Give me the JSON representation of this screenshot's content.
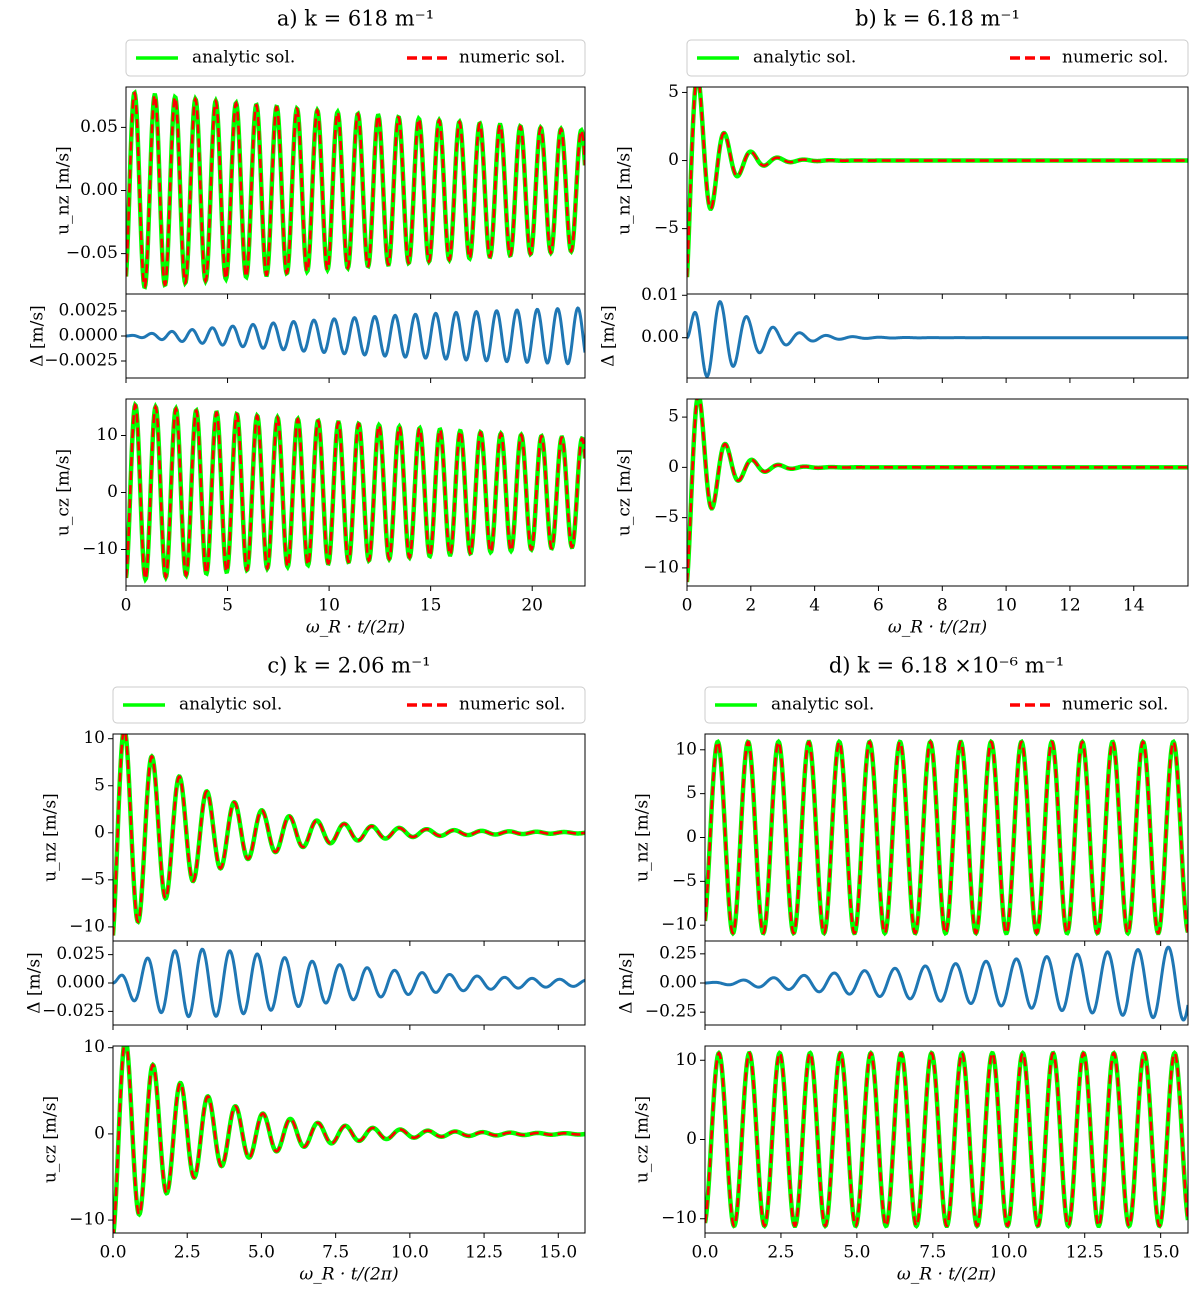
{
  "figure": {
    "analytic_color": "#00ff00",
    "numeric_color": "#ff0000",
    "diff_color": "#1f77b4",
    "legend": {
      "analytic": "analytic sol.",
      "numeric": "numeric sol."
    },
    "xlabel": "ω_R · t/(2π)",
    "ylabel_top": "u_nz [m/s]",
    "ylabel_diff": "Δ [m/s]",
    "ylabel_bottom": "u_cz [m/s]"
  },
  "chart_data": [
    {
      "type": "line",
      "panel": "a",
      "title": "a)  k =  618  m⁻¹",
      "xlim": [
        0,
        22.6
      ],
      "xticks": [
        "0",
        "5",
        "10",
        "15",
        "20"
      ],
      "xtick_values": [
        0,
        5,
        10,
        15,
        20
      ],
      "params": {
        "omega_cycles_per_unit": 1,
        "decay": 0.022,
        "phase": 3.4
      },
      "u_nz": {
        "ylim": [
          -0.082,
          0.082
        ],
        "amplitude": 0.078,
        "ticks": [
          "0.05",
          "0.00",
          "−0.05"
        ],
        "tick_values": [
          0.05,
          0.0,
          -0.05
        ]
      },
      "delta": {
        "ylim": [
          -0.0042,
          0.0042
        ],
        "amplitude_growth": 0.0038,
        "ticks": [
          "0.0025",
          "0.0000",
          "−0.0025"
        ],
        "tick_values": [
          0.0025,
          0.0,
          -0.0025
        ]
      },
      "u_cz": {
        "ylim": [
          -16.4,
          16.4
        ],
        "amplitude": 15.5,
        "ticks": [
          "10",
          "0",
          "−10"
        ],
        "tick_values": [
          10,
          0,
          -10
        ]
      }
    },
    {
      "type": "line",
      "panel": "b",
      "title": "b)  k =  6.18 m⁻¹",
      "xlim": [
        0,
        15.7
      ],
      "xticks": [
        "0",
        "2",
        "4",
        "6",
        "8",
        "10",
        "12",
        "14"
      ],
      "xtick_values": [
        0,
        2,
        4,
        6,
        8,
        10,
        12,
        14
      ],
      "params": {
        "omega_cycles_per_unit": 1.2,
        "decay": 1.35,
        "phase": 3.4
      },
      "u_nz": {
        "ylim": [
          -9.8,
          5.4
        ],
        "amplitude": 9.8,
        "ticks": [
          "5",
          "0",
          "−5"
        ],
        "tick_values": [
          5,
          0,
          -5
        ]
      },
      "delta": {
        "ylim": [
          -0.0095,
          0.0103
        ],
        "amplitude_growth": 0.0105,
        "ticks": [
          "0.01",
          "0.00"
        ],
        "tick_values": [
          0.01,
          0.0
        ]
      },
      "u_cz": {
        "ylim": [
          -11.8,
          6.8
        ],
        "amplitude": 11.8,
        "ticks": [
          "5",
          "0",
          "−5",
          "−10"
        ],
        "tick_values": [
          5,
          0,
          -5,
          -10
        ]
      }
    },
    {
      "type": "line",
      "panel": "c",
      "title": "c)  k =  2.06 m⁻¹",
      "xlim": [
        0,
        15.9
      ],
      "xticks": [
        "0.0",
        "2.5",
        "5.0",
        "7.5",
        "10.0",
        "12.5",
        "15.0"
      ],
      "xtick_values": [
        0,
        2.5,
        5,
        7.5,
        10,
        12.5,
        15
      ],
      "params": {
        "omega_cycles_per_unit": 1.08,
        "decay": 0.33,
        "phase": 3.4
      },
      "u_nz": {
        "ylim": [
          -11.5,
          10.5
        ],
        "amplitude": 12.5,
        "ticks": [
          "10",
          "5",
          "0",
          "−5",
          "−10"
        ],
        "tick_values": [
          10,
          5,
          0,
          -5,
          -10
        ]
      },
      "delta": {
        "ylim": [
          -0.037,
          0.037
        ],
        "amplitude_growth": 0.034,
        "ticks": [
          "0.025",
          "0.000",
          "−0.025"
        ],
        "tick_values": [
          0.025,
          0.0,
          -0.025
        ]
      },
      "u_cz": {
        "ylim": [
          -11.5,
          10.2
        ],
        "amplitude": 12.5,
        "ticks": [
          "10",
          "0",
          "−10"
        ],
        "tick_values": [
          10,
          0,
          -10
        ]
      }
    },
    {
      "type": "line",
      "panel": "d",
      "title": "d)  k =  6.18 ×10⁻⁶ m⁻¹",
      "xlim": [
        0,
        15.9
      ],
      "xticks": [
        "0.0",
        "2.5",
        "5.0",
        "7.5",
        "10.0",
        "12.5",
        "15.0"
      ],
      "xtick_values": [
        0,
        2.5,
        5,
        7.5,
        10,
        12.5,
        15
      ],
      "params": {
        "omega_cycles_per_unit": 1.0,
        "decay": 0.0,
        "phase": 3.4
      },
      "u_nz": {
        "ylim": [
          -11.8,
          11.8
        ],
        "amplitude": 10.9,
        "ticks": [
          "10",
          "5",
          "0",
          "−5",
          "−10"
        ],
        "tick_values": [
          10,
          5,
          0,
          -5,
          -10
        ]
      },
      "delta": {
        "ylim": [
          -0.36,
          0.36
        ],
        "amplitude_growth": 0.32,
        "ticks": [
          "0.25",
          "0.00",
          "−0.25"
        ],
        "tick_values": [
          0.25,
          0.0,
          -0.25
        ]
      },
      "u_cz": {
        "ylim": [
          -11.8,
          11.8
        ],
        "amplitude": 10.9,
        "ticks": [
          "10",
          "0",
          "−10"
        ],
        "tick_values": [
          10,
          0,
          -10
        ]
      }
    }
  ]
}
